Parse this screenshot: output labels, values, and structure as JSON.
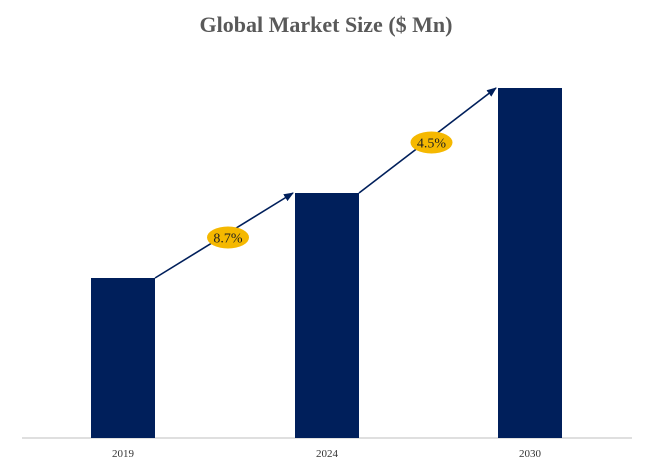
{
  "chart_data": {
    "type": "bar",
    "title": "Global Market Size ($ Mn)",
    "categories": [
      "2019",
      "2024",
      "2030"
    ],
    "values": [
      160,
      245,
      350
    ],
    "ylim": [
      0,
      350
    ],
    "grid": false,
    "annotations": [
      {
        "label": "8.7%",
        "from": "2019",
        "to": "2024"
      },
      {
        "label": "4.5%",
        "from": "2024",
        "to": "2030"
      }
    ],
    "colors": {
      "bar": "#001f5b",
      "arrow": "#001f5b",
      "badge": "#f5b800",
      "axis": "#bfbfbf"
    }
  }
}
